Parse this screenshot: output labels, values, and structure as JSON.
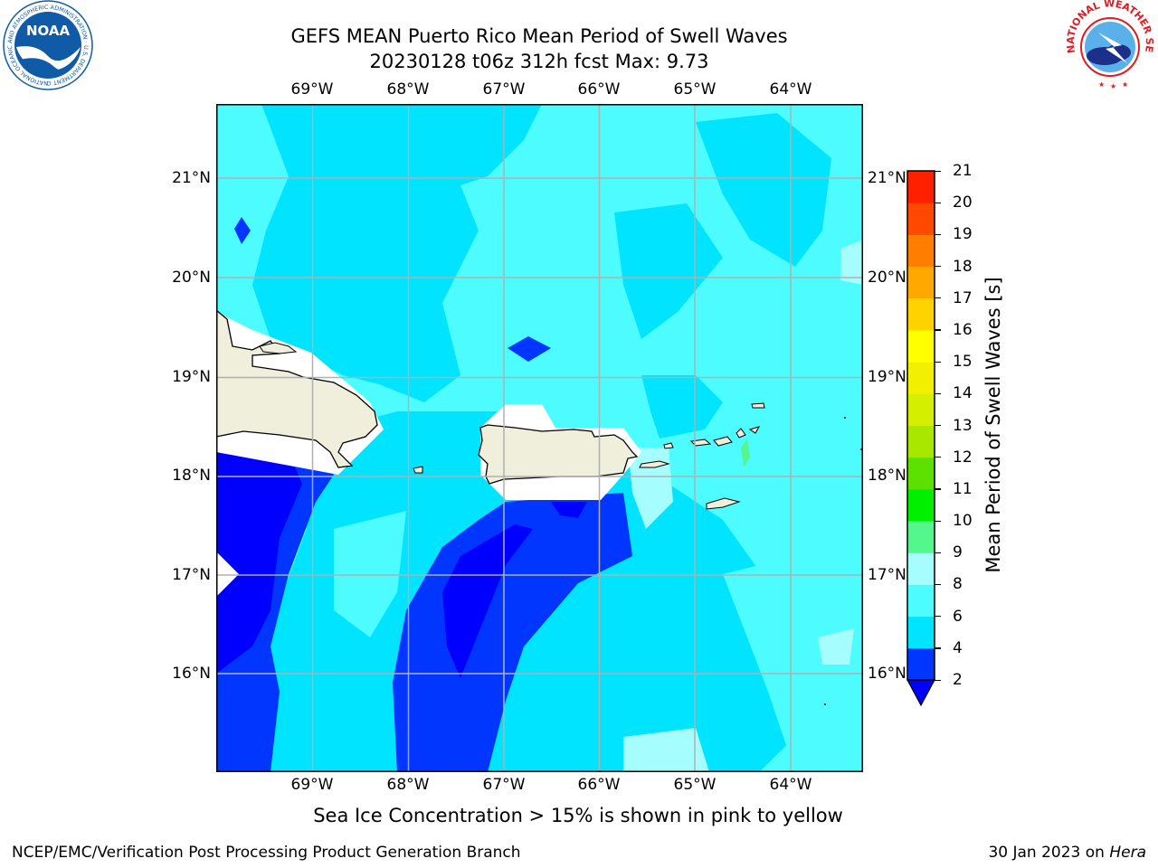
{
  "title_line1": "GEFS MEAN Puerto Rico Mean Period of Swell Waves",
  "title_line2": "20230128 t06z 312h fcst   Max: 9.73",
  "lon_labels": [
    "69°W",
    "68°W",
    "67°W",
    "66°W",
    "65°W",
    "64°W"
  ],
  "lat_labels": [
    "21°N",
    "20°N",
    "19°N",
    "18°N",
    "17°N",
    "16°N"
  ],
  "colorbar": {
    "title": "Mean Period of Swell Waves [s]",
    "levels": [
      "2",
      "4",
      "6",
      "8",
      "9",
      "10",
      "11",
      "12",
      "13",
      "14",
      "15",
      "16",
      "17",
      "18",
      "19",
      "20",
      "21"
    ],
    "colors": [
      "#0036ff",
      "#00e4ff",
      "#4dfcff",
      "#a6fdfd",
      "#53f78b",
      "#00f000",
      "#5ce000",
      "#a8e800",
      "#d4f000",
      "#f2f000",
      "#ffff00",
      "#ffd200",
      "#ffa800",
      "#ff7e00",
      "#ff4800",
      "#ff2000"
    ],
    "under_color": "#0000ff"
  },
  "colors": {
    "water_base": "#4dfcff",
    "cyan_mid": "#00e4ff",
    "blue_low": "#0036ff",
    "blue_deep": "#0000ff",
    "land": "#efefdc",
    "noaa_blue": "#0f5ba7",
    "nws_red": "#e31b23"
  },
  "subcaption": "Sea Ice Concentration > 15% is shown in pink to yellow",
  "footer_left": "NCEP/EMC/Verification Post Processing Product Generation Branch",
  "footer_right_date": "30 Jan 2023 on ",
  "footer_right_machine": "Hera",
  "logos": {
    "noaa_text": "NOAA",
    "noaa_ring": "NATIONAL OCEANIC AND ATMOSPHERIC ADMINISTRATION · U.S. DEPARTMENT OF COMMERCE ·",
    "nws_ring": "NATIONAL WEATHER SERVICE"
  }
}
